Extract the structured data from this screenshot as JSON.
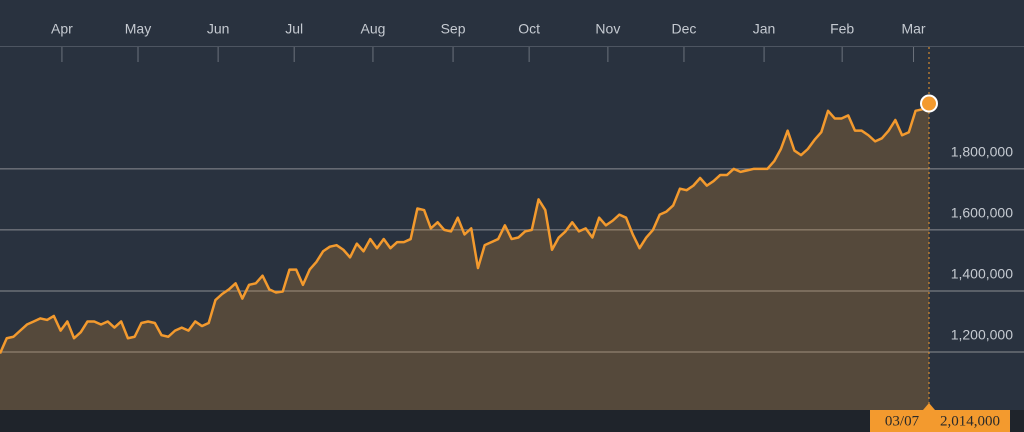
{
  "chart_data": {
    "type": "line",
    "values": [
      1195000,
      1245000,
      1250000,
      1270000,
      1290000,
      1300000,
      1310000,
      1305000,
      1318000,
      1270000,
      1300000,
      1245000,
      1265000,
      1300000,
      1300000,
      1290000,
      1300000,
      1280000,
      1300000,
      1245000,
      1250000,
      1295000,
      1300000,
      1295000,
      1255000,
      1250000,
      1270000,
      1280000,
      1270000,
      1300000,
      1285000,
      1295000,
      1370000,
      1390000,
      1405000,
      1425000,
      1375000,
      1420000,
      1425000,
      1450000,
      1405000,
      1395000,
      1398000,
      1470000,
      1470000,
      1420000,
      1470000,
      1495000,
      1530000,
      1545000,
      1550000,
      1535000,
      1510000,
      1555000,
      1530000,
      1570000,
      1540000,
      1570000,
      1540000,
      1560000,
      1560000,
      1570000,
      1670000,
      1665000,
      1605000,
      1625000,
      1600000,
      1595000,
      1640000,
      1585000,
      1605000,
      1475000,
      1550000,
      1560000,
      1570000,
      1615000,
      1570000,
      1575000,
      1595000,
      1600000,
      1700000,
      1665000,
      1535000,
      1575000,
      1595000,
      1625000,
      1595000,
      1605000,
      1575000,
      1640000,
      1615000,
      1630000,
      1650000,
      1640000,
      1585000,
      1540000,
      1575000,
      1600000,
      1650000,
      1660000,
      1680000,
      1735000,
      1730000,
      1745000,
      1770000,
      1745000,
      1760000,
      1780000,
      1780000,
      1800000,
      1790000,
      1795000,
      1800000,
      1800000,
      1800000,
      1825000,
      1865000,
      1925000,
      1860000,
      1845000,
      1865000,
      1895000,
      1920000,
      1990000,
      1965000,
      1965000,
      1975000,
      1925000,
      1925000,
      1910000,
      1890000,
      1900000,
      1925000,
      1960000,
      1910000,
      1920000,
      1990000,
      1995000,
      2014000
    ],
    "color": "#f39a2e",
    "xlim": [
      0,
      138
    ],
    "xticks": [
      {
        "value": 9.2,
        "label": "Apr"
      },
      {
        "value": 20.5,
        "label": "May"
      },
      {
        "value": 32.4,
        "label": "Jun"
      },
      {
        "value": 43.7,
        "label": "Jul"
      },
      {
        "value": 55.4,
        "label": "Aug"
      },
      {
        "value": 67.3,
        "label": "Sep"
      },
      {
        "value": 78.6,
        "label": "Oct"
      },
      {
        "value": 90.3,
        "label": "Nov"
      },
      {
        "value": 101.6,
        "label": "Dec"
      },
      {
        "value": 113.5,
        "label": "Jan"
      },
      {
        "value": 125.1,
        "label": "Feb"
      },
      {
        "value": 135.7,
        "label": "Mar"
      }
    ],
    "ylim": [
      1010000,
      2150000
    ],
    "yticks": [
      {
        "value": 1200000,
        "label": "1,200,000"
      },
      {
        "value": 1400000,
        "label": "1,400,000"
      },
      {
        "value": 1600000,
        "label": "1,600,000"
      },
      {
        "value": 1800000,
        "label": "1,800,000"
      }
    ],
    "grid": true,
    "last_point": {
      "x_label": "03/07",
      "value_label": "2,014,000"
    }
  }
}
